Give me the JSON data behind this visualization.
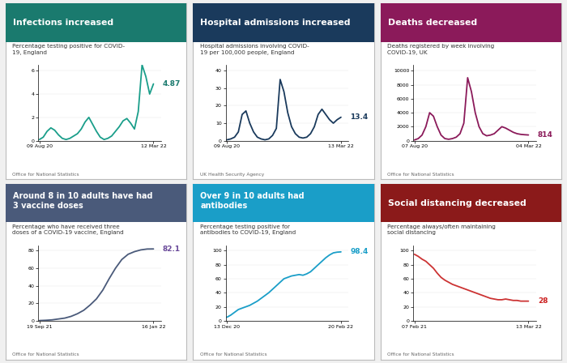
{
  "panels": [
    {
      "title": "Infections increased",
      "header_color": "#1a7a6e",
      "subtitle": "Percentage testing positive for COVID-\n19, England",
      "source": "Office for National Statistics",
      "x_ticks": [
        "09 Aug 20",
        "12 Mar 22"
      ],
      "y_ticks": [
        0,
        2,
        4,
        6
      ],
      "end_value": "4.87",
      "end_value_color": "#1a7a6e",
      "line_color": "#1a9e8a",
      "data_x": [
        0,
        3,
        6,
        9,
        12,
        15,
        18,
        21,
        24,
        27,
        30,
        33,
        36,
        39,
        42,
        45,
        48,
        51,
        54,
        57,
        60,
        63,
        66,
        69,
        72,
        75,
        78,
        81,
        84,
        87,
        90
      ],
      "data_y": [
        0.1,
        0.3,
        0.8,
        1.1,
        0.9,
        0.5,
        0.2,
        0.1,
        0.2,
        0.4,
        0.6,
        1.0,
        1.6,
        2.0,
        1.4,
        0.8,
        0.3,
        0.1,
        0.2,
        0.4,
        0.8,
        1.2,
        1.7,
        1.9,
        1.5,
        1.0,
        2.5,
        6.5,
        5.5,
        4.0,
        4.87
      ]
    },
    {
      "title": "Hospital admissions increased",
      "header_color": "#1a3a5c",
      "subtitle": "Hospital admissions involving COVID-\n19 per 100,000 people, England",
      "source": "UK Health Security Agency",
      "x_ticks": [
        "09 Aug 20",
        "13 Mar 22"
      ],
      "y_ticks": [
        0,
        10,
        20,
        30,
        40
      ],
      "end_value": "13.4",
      "end_value_color": "#1a3a5c",
      "line_color": "#1a3a5c",
      "data_x": [
        0,
        3,
        6,
        9,
        12,
        15,
        18,
        21,
        24,
        27,
        30,
        33,
        36,
        39,
        42,
        45,
        48,
        51,
        54,
        57,
        60,
        63,
        66,
        69,
        72,
        75,
        78,
        81,
        84,
        87,
        90
      ],
      "data_y": [
        0.5,
        1.0,
        2.0,
        5.0,
        15.0,
        17.0,
        10.0,
        5.0,
        2.0,
        1.0,
        0.5,
        1.0,
        3.0,
        7.0,
        35.0,
        28.0,
        16.0,
        8.0,
        4.0,
        2.0,
        1.5,
        2.0,
        4.0,
        8.0,
        15.0,
        18.0,
        15.0,
        12.0,
        10.0,
        12.0,
        13.4
      ]
    },
    {
      "title": "Deaths decreased",
      "header_color": "#8b1a5a",
      "subtitle": "Deaths registered by week involving\nCOVID-19, UK",
      "source": "Office for National Statistics",
      "x_ticks": [
        "07 Aug 20",
        "04 Mar 22"
      ],
      "y_ticks": [
        0,
        2000,
        4000,
        6000,
        8000,
        10000
      ],
      "end_value": "814",
      "end_value_color": "#8b1a5a",
      "line_color": "#8b1a5a",
      "data_x": [
        0,
        3,
        6,
        9,
        12,
        15,
        18,
        21,
        24,
        27,
        30,
        33,
        36,
        39,
        42,
        45,
        48,
        51,
        54,
        57,
        60,
        63,
        66,
        69,
        72,
        75,
        78,
        81,
        84,
        87,
        90
      ],
      "data_y": [
        100,
        300,
        800,
        2000,
        4000,
        3500,
        2000,
        800,
        300,
        200,
        300,
        500,
        1000,
        2500,
        9000,
        7000,
        4000,
        2000,
        1000,
        700,
        800,
        1000,
        1500,
        2000,
        1800,
        1500,
        1200,
        1000,
        900,
        850,
        814
      ]
    },
    {
      "title": "Around 8 in 10 adults have had\n3 vaccine doses",
      "header_color": "#4a5a7a",
      "subtitle": "Percentage who have received three\ndoses of a COVID-19 vaccine, England",
      "source": "Office for National Statistics",
      "x_ticks": [
        "19 Sep 21",
        "16 Jan 22"
      ],
      "y_ticks": [
        0,
        20,
        40,
        60,
        80
      ],
      "end_value": "82.1",
      "end_value_color": "#6a4a9a",
      "line_color": "#4a5a7a",
      "data_x": [
        0,
        5,
        10,
        15,
        20,
        25,
        30,
        35,
        40,
        45,
        50,
        55,
        60,
        65,
        70,
        75,
        80,
        85,
        90
      ],
      "data_y": [
        0.2,
        0.5,
        1.0,
        2.0,
        3.0,
        5.0,
        8.0,
        12.0,
        18.0,
        25.0,
        35.0,
        48.0,
        60.0,
        70.0,
        76.0,
        79.0,
        81.0,
        82.0,
        82.1
      ]
    },
    {
      "title": "Over 9 in 10 adults had\nantibodies",
      "header_color": "#1a9ec8",
      "subtitle": "Percentage testing positive for\nantibodies to COVID-19, England",
      "source": "Office for National Statistics",
      "x_ticks": [
        "13 Dec 20",
        "20 Feb 22"
      ],
      "y_ticks": [
        0,
        20,
        40,
        60,
        80,
        100
      ],
      "end_value": "98.4",
      "end_value_color": "#1a9ec8",
      "line_color": "#1a9ec8",
      "data_x": [
        0,
        3,
        6,
        9,
        12,
        15,
        18,
        21,
        24,
        27,
        30,
        33,
        36,
        39,
        42,
        45,
        48,
        51,
        54,
        57,
        60,
        63,
        66,
        69,
        72,
        75,
        78,
        81,
        84,
        87,
        90
      ],
      "data_y": [
        5,
        8,
        12,
        16,
        18,
        20,
        22,
        25,
        28,
        32,
        36,
        40,
        45,
        50,
        55,
        60,
        62,
        64,
        65,
        66,
        65,
        67,
        70,
        75,
        80,
        85,
        90,
        94,
        97,
        98,
        98.4
      ]
    },
    {
      "title": "Social distancing decreased",
      "header_color": "#8b1a1a",
      "subtitle": "Percentage always/often maintaining\nsocial distancing",
      "source": "Office for National Statistics",
      "x_ticks": [
        "07 Feb 21",
        "13 Mar 22"
      ],
      "y_ticks": [
        0,
        20,
        40,
        60,
        80,
        100
      ],
      "end_value": "28",
      "end_value_color": "#cc2222",
      "line_color": "#cc3333",
      "data_x": [
        0,
        3,
        6,
        9,
        12,
        15,
        18,
        21,
        24,
        27,
        30,
        33,
        36,
        39,
        42,
        45,
        48,
        51,
        54,
        57,
        60,
        63,
        66,
        69,
        72,
        75,
        78,
        81,
        84,
        87,
        90
      ],
      "data_y": [
        95,
        92,
        88,
        85,
        80,
        75,
        68,
        62,
        58,
        55,
        52,
        50,
        48,
        46,
        44,
        42,
        40,
        38,
        36,
        34,
        32,
        31,
        30,
        30,
        31,
        30,
        29,
        29,
        28,
        28,
        28
      ]
    }
  ],
  "bg_color": "#f0f0f0",
  "panel_bg": "#ffffff",
  "border_color": "#bbbbbb",
  "grid_rows": 2,
  "grid_cols": 3,
  "fig_width": 7.0,
  "fig_height": 4.48,
  "fig_dpi": 100
}
